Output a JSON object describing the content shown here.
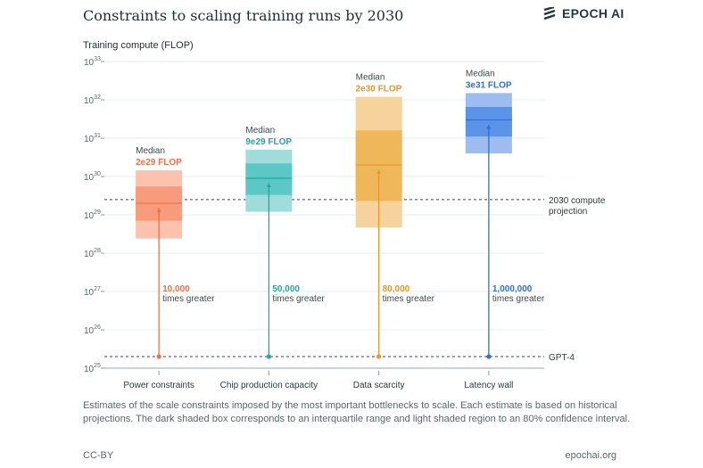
{
  "header": {
    "title": "Constraints to scaling training runs by 2030",
    "logo_text": "EPOCH AI"
  },
  "footer": {
    "caption": "Estimates of the scale constraints imposed by the most important bottlenecks to scale. Each estimate is based on historical projections. The dark shaded box corresponds to an interquartile range and light shaded region to an 80% confidence interval.",
    "license": "CC-BY",
    "site": "epochai.org"
  },
  "chart_data": {
    "type": "bar",
    "title": "Constraints to scaling training runs by 2030",
    "ylabel": "Training compute (FLOP)",
    "y_scale": "log",
    "ylim": [
      1e+25,
      1e+33
    ],
    "y_ticks": [
      {
        "base": "10",
        "exp": "33"
      },
      {
        "base": "10",
        "exp": "32"
      },
      {
        "base": "10",
        "exp": "31"
      },
      {
        "base": "10",
        "exp": "30"
      },
      {
        "base": "10",
        "exp": "29"
      },
      {
        "base": "10",
        "exp": "28"
      },
      {
        "base": "10",
        "exp": "27"
      },
      {
        "base": "10",
        "exp": "26"
      },
      {
        "base": "10",
        "exp": "25"
      }
    ],
    "grid": true,
    "categories": [
      "Power constraints",
      "Chip production capacity",
      "Data scarcity",
      "Latency wall"
    ],
    "series": [
      {
        "category": "Power constraints",
        "median": 2e+29,
        "median_label": "2e29 FLOP",
        "median_prefix": "Median",
        "iqr": [
          7e+28,
          5.5e+29
        ],
        "ci80": [
          2.4e+28,
          1.45e+30
        ],
        "multiplier": "10,000",
        "multiplier_suffix": "times greater",
        "color": "#e8734a",
        "light": "#fbc3ae",
        "dark": "#f79b7c"
      },
      {
        "category": "Chip production capacity",
        "median": 9e+29,
        "median_label": "9e29 FLOP",
        "median_prefix": "Median",
        "iqr": [
          3.3e+29,
          2.2e+30
        ],
        "ci80": [
          1.2e+29,
          5e+30
        ],
        "multiplier": "50,000",
        "multiplier_suffix": "times greater",
        "color": "#1fa8a5",
        "light": "#9fdcda",
        "dark": "#5cc7c4"
      },
      {
        "category": "Data scarcity",
        "median": 2e+30,
        "median_label": "2e30 FLOP",
        "median_prefix": "Median",
        "iqr": [
          2.3e+29,
          1.6e+31
        ],
        "ci80": [
          4.7e+28,
          1.2e+32
        ],
        "multiplier": "80,000",
        "multiplier_suffix": "times greater",
        "color": "#e9962a",
        "light": "#f6d29c",
        "dark": "#f0b65a"
      },
      {
        "category": "Latency wall",
        "median": 3e+31,
        "median_label": "3e31 FLOP",
        "median_prefix": "Median",
        "iqr": [
          1.1e+31,
          6.5e+31
        ],
        "ci80": [
          4e+30,
          1.5e+32
        ],
        "multiplier": "1,000,000",
        "multiplier_suffix": "times greater",
        "color": "#2f6fd6",
        "light": "#9dbdf0",
        "dark": "#5b93e6"
      }
    ],
    "reference_lines": [
      {
        "label": "2030 compute projection",
        "label_lines": [
          "2030 compute",
          "projection"
        ],
        "value": 2.5e+29
      },
      {
        "label": "GPT-4",
        "label_lines": [
          "GPT-4"
        ],
        "value": 2e+25
      }
    ]
  }
}
